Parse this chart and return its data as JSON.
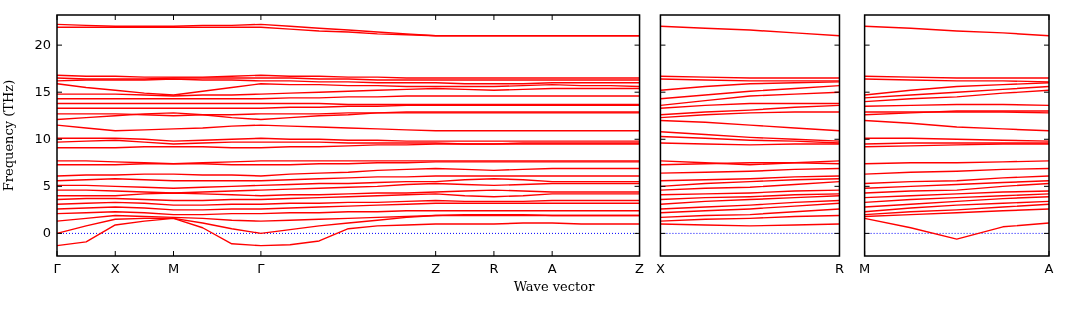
{
  "chart_data": [
    {
      "type": "line",
      "xlabel": "Wave vector",
      "ylabel": "Frequency (THz)",
      "marker": "none",
      "line_style": "solid",
      "categories": [
        "Γ",
        null,
        "X",
        null,
        "M",
        null,
        null,
        "Γ",
        null,
        null,
        null,
        null,
        null,
        "Z",
        null,
        "R",
        null,
        "A",
        null,
        null,
        "Z"
      ],
      "ylim": [
        -2.4,
        23.2
      ],
      "yticks": [
        0,
        5,
        10,
        15,
        20
      ],
      "ref_lines": [
        {
          "axis": "y",
          "value": 0,
          "color": "#0000ff",
          "line_style": "dotted"
        }
      ],
      "series": [
        {
          "color": "#ff0000",
          "values": [
            22.2,
            22.1,
            22.0,
            22.0,
            22.0,
            22.1,
            22.1,
            22.2,
            22.0,
            21.8,
            21.6,
            21.4,
            21.2,
            21.0,
            21.0,
            21.0,
            21.0,
            21.0,
            21.0,
            21.0,
            21.0
          ]
        },
        {
          "color": "#ff0000",
          "values": [
            21.9,
            21.9,
            21.9,
            21.9,
            21.9,
            21.9,
            21.9,
            21.9,
            21.7,
            21.5,
            21.4,
            21.2,
            21.1,
            21.0,
            21.0,
            21.0,
            21.0,
            21.0,
            21.0,
            21.0,
            21.0
          ]
        },
        {
          "color": "#ff0000",
          "values": [
            16.8,
            16.7,
            16.7,
            16.6,
            16.6,
            16.6,
            16.7,
            16.8,
            16.7,
            16.7,
            16.6,
            16.6,
            16.5,
            16.5,
            16.5,
            16.5,
            16.5,
            16.5,
            16.5,
            16.5,
            16.5
          ]
        },
        {
          "color": "#ff0000",
          "values": [
            16.5,
            16.4,
            16.4,
            16.4,
            16.5,
            16.5,
            16.5,
            16.5,
            16.5,
            16.4,
            16.4,
            16.3,
            16.3,
            16.3,
            16.3,
            16.3,
            16.3,
            16.3,
            16.3,
            16.3,
            16.3
          ]
        },
        {
          "color": "#ff0000",
          "values": [
            16.2,
            16.3,
            16.3,
            16.3,
            16.4,
            16.3,
            16.3,
            16.2,
            16.2,
            16.1,
            16.1,
            16.0,
            16.0,
            16.0,
            15.9,
            15.9,
            15.9,
            16.0,
            16.0,
            16.0,
            16.0
          ]
        },
        {
          "color": "#ff0000",
          "values": [
            15.9,
            15.5,
            15.2,
            14.9,
            14.7,
            15.1,
            15.5,
            15.9,
            15.8,
            15.8,
            15.7,
            15.7,
            15.6,
            15.6,
            15.6,
            15.6,
            15.7,
            15.8,
            15.7,
            15.7,
            15.6
          ]
        },
        {
          "color": "#ff0000",
          "values": [
            14.8,
            14.8,
            14.8,
            14.7,
            14.6,
            14.7,
            14.7,
            14.8,
            14.9,
            15.0,
            15.1,
            15.2,
            15.3,
            15.4,
            15.3,
            15.2,
            15.3,
            15.4,
            15.4,
            15.4,
            15.4
          ]
        },
        {
          "color": "#ff0000",
          "values": [
            14.3,
            14.3,
            14.3,
            14.3,
            14.3,
            14.3,
            14.3,
            14.3,
            14.4,
            14.4,
            14.5,
            14.5,
            14.6,
            14.6,
            14.6,
            14.6,
            14.6,
            14.6,
            14.6,
            14.6,
            14.6
          ]
        },
        {
          "color": "#ff0000",
          "values": [
            13.8,
            13.8,
            13.8,
            13.8,
            13.8,
            13.8,
            13.8,
            13.8,
            13.8,
            13.8,
            13.7,
            13.7,
            13.7,
            13.7,
            13.7,
            13.7,
            13.7,
            13.7,
            13.7,
            13.7,
            13.7
          ]
        },
        {
          "color": "#ff0000",
          "values": [
            13.3,
            13.3,
            13.3,
            13.3,
            13.3,
            13.3,
            13.3,
            13.3,
            13.4,
            13.4,
            13.5,
            13.5,
            13.6,
            13.6,
            13.6,
            13.6,
            13.6,
            13.6,
            13.6,
            13.6,
            13.6
          ]
        },
        {
          "color": "#ff0000",
          "values": [
            12.7,
            12.7,
            12.7,
            12.6,
            12.5,
            12.6,
            12.6,
            12.7,
            12.7,
            12.7,
            12.8,
            12.8,
            12.8,
            12.8,
            12.8,
            12.8,
            12.8,
            12.8,
            12.8,
            12.8,
            12.8
          ]
        },
        {
          "color": "#ff0000",
          "values": [
            12.1,
            12.3,
            12.5,
            12.7,
            12.8,
            12.6,
            12.3,
            12.1,
            12.3,
            12.5,
            12.6,
            12.8,
            12.9,
            12.9,
            12.9,
            12.9,
            12.9,
            12.9,
            12.9,
            12.9,
            12.9
          ]
        },
        {
          "color": "#ff0000",
          "values": [
            11.5,
            11.2,
            10.9,
            11.0,
            11.1,
            11.2,
            11.4,
            11.5,
            11.4,
            11.3,
            11.2,
            11.1,
            11.0,
            10.9,
            10.9,
            10.9,
            10.9,
            10.9,
            10.9,
            10.9,
            10.9
          ]
        },
        {
          "color": "#ff0000",
          "values": [
            10.1,
            10.1,
            10.1,
            10.0,
            9.8,
            9.9,
            10.0,
            10.1,
            10.0,
            10.0,
            9.9,
            9.9,
            9.8,
            9.8,
            9.8,
            9.8,
            9.8,
            9.8,
            9.8,
            9.8,
            9.8
          ]
        },
        {
          "color": "#ff0000",
          "values": [
            9.7,
            9.8,
            9.9,
            9.7,
            9.5,
            9.6,
            9.7,
            9.7,
            9.7,
            9.7,
            9.6,
            9.6,
            9.6,
            9.6,
            9.5,
            9.5,
            9.6,
            9.6,
            9.6,
            9.6,
            9.6
          ]
        },
        {
          "color": "#ff0000",
          "values": [
            9.1,
            9.1,
            9.1,
            9.2,
            9.2,
            9.2,
            9.1,
            9.1,
            9.2,
            9.2,
            9.3,
            9.4,
            9.4,
            9.5,
            9.5,
            9.5,
            9.5,
            9.5,
            9.5,
            9.5,
            9.5
          ]
        },
        {
          "color": "#ff0000",
          "values": [
            7.7,
            7.7,
            7.6,
            7.5,
            7.4,
            7.5,
            7.6,
            7.7,
            7.7,
            7.7,
            7.7,
            7.7,
            7.7,
            7.7,
            7.7,
            7.7,
            7.7,
            7.7,
            7.7,
            7.7,
            7.7
          ]
        },
        {
          "color": "#ff0000",
          "values": [
            7.3,
            7.3,
            7.3,
            7.4,
            7.4,
            7.4,
            7.3,
            7.3,
            7.3,
            7.4,
            7.4,
            7.5,
            7.5,
            7.6,
            7.6,
            7.6,
            7.6,
            7.6,
            7.6,
            7.6,
            7.6
          ]
        },
        {
          "color": "#ff0000",
          "values": [
            6.1,
            6.2,
            6.2,
            6.3,
            6.3,
            6.2,
            6.2,
            6.1,
            6.3,
            6.4,
            6.5,
            6.7,
            6.8,
            6.9,
            6.8,
            6.7,
            6.8,
            6.9,
            6.9,
            6.9,
            6.9
          ]
        },
        {
          "color": "#ff0000",
          "values": [
            5.6,
            5.7,
            5.8,
            5.7,
            5.6,
            5.6,
            5.6,
            5.6,
            5.7,
            5.8,
            5.9,
            6.0,
            6.0,
            6.1,
            6.1,
            6.1,
            6.1,
            6.1,
            6.1,
            6.1,
            6.1
          ]
        },
        {
          "color": "#ff0000",
          "values": [
            5.1,
            5.1,
            5.0,
            4.9,
            4.8,
            4.9,
            5.0,
            5.1,
            5.2,
            5.3,
            5.3,
            5.4,
            5.5,
            5.5,
            5.7,
            5.8,
            5.7,
            5.5,
            5.5,
            5.5,
            5.5
          ]
        },
        {
          "color": "#ff0000",
          "values": [
            4.6,
            4.6,
            4.5,
            4.4,
            4.3,
            4.4,
            4.5,
            4.6,
            4.7,
            4.8,
            4.9,
            5.0,
            5.2,
            5.3,
            5.2,
            5.1,
            5.2,
            5.3,
            5.3,
            5.3,
            5.3
          ]
        },
        {
          "color": "#ff0000",
          "values": [
            4.0,
            4.0,
            4.0,
            4.2,
            4.3,
            4.2,
            4.1,
            4.0,
            4.1,
            4.1,
            4.2,
            4.3,
            4.3,
            4.4,
            4.5,
            4.6,
            4.5,
            4.4,
            4.4,
            4.4,
            4.4
          ]
        },
        {
          "color": "#ff0000",
          "values": [
            3.6,
            3.7,
            3.7,
            3.6,
            3.5,
            3.5,
            3.6,
            3.6,
            3.7,
            3.8,
            3.9,
            4.0,
            4.1,
            4.2,
            4.0,
            3.9,
            4.0,
            4.2,
            4.2,
            4.2,
            4.2
          ]
        },
        {
          "color": "#ff0000",
          "values": [
            3.1,
            3.2,
            3.3,
            3.2,
            3.0,
            3.0,
            3.1,
            3.1,
            3.2,
            3.2,
            3.3,
            3.3,
            3.4,
            3.5,
            3.4,
            3.4,
            3.4,
            3.5,
            3.5,
            3.5,
            3.5
          ]
        },
        {
          "color": "#ff0000",
          "values": [
            2.6,
            2.7,
            2.8,
            2.7,
            2.5,
            2.5,
            2.6,
            2.6,
            2.7,
            2.8,
            2.9,
            3.0,
            3.1,
            3.2,
            3.2,
            3.2,
            3.2,
            3.2,
            3.2,
            3.2,
            3.2
          ]
        },
        {
          "color": "#ff0000",
          "values": [
            2.1,
            2.2,
            2.3,
            2.2,
            2.0,
            2.0,
            2.1,
            2.1,
            2.2,
            2.2,
            2.3,
            2.3,
            2.4,
            2.4,
            2.4,
            2.4,
            2.4,
            2.4,
            2.4,
            2.4,
            2.4
          ]
        },
        {
          "color": "#ff0000",
          "values": [
            1.3,
            1.6,
            1.9,
            1.8,
            1.7,
            1.6,
            1.4,
            1.3,
            1.4,
            1.5,
            1.6,
            1.7,
            1.8,
            1.9,
            1.9,
            1.9,
            1.9,
            1.9,
            1.9,
            1.9,
            1.9
          ]
        },
        {
          "color": "#ff0000",
          "values": [
            0,
            0.8,
            1.5,
            1.6,
            1.6,
            1.1,
            0.5,
            0,
            0.4,
            0.8,
            1.1,
            1.4,
            1.7,
            1.9,
            2.0,
            2.0,
            2.0,
            1.9,
            1.9,
            1.9,
            1.9
          ]
        },
        {
          "color": "#ff0000",
          "values": [
            -1.3,
            -0.9,
            0.9,
            1.3,
            1.6,
            0.6,
            -1.1,
            -1.3,
            -1.2,
            -0.8,
            0.5,
            0.8,
            0.9,
            1.0,
            1.0,
            1.0,
            1.1,
            1.1,
            1.0,
            1.0,
            1.0
          ]
        }
      ]
    },
    {
      "type": "line",
      "marker": "none",
      "line_style": "solid",
      "tick_labels": "x",
      "categories": [
        "X",
        null,
        null,
        null,
        "R"
      ],
      "ylim": [
        -2.4,
        23.2
      ],
      "yticks": [
        0,
        5,
        10,
        15,
        20
      ],
      "ref_lines": [
        {
          "axis": "y",
          "value": 0,
          "color": "#0000ff",
          "line_style": "dotted"
        }
      ],
      "series": [
        {
          "color": "#ff0000",
          "values": [
            22.0,
            21.8,
            21.6,
            21.3,
            21.0
          ]
        },
        {
          "color": "#ff0000",
          "values": [
            16.7,
            16.6,
            16.5,
            16.5,
            16.5
          ]
        },
        {
          "color": "#ff0000",
          "values": [
            16.4,
            16.3,
            16.2,
            16.2,
            16.2
          ]
        },
        {
          "color": "#ff0000",
          "values": [
            15.2,
            15.6,
            15.9,
            16.0,
            16.1
          ]
        },
        {
          "color": "#ff0000",
          "values": [
            14.3,
            14.7,
            15.1,
            15.4,
            15.7
          ]
        },
        {
          "color": "#ff0000",
          "values": [
            13.6,
            14.1,
            14.6,
            14.8,
            15.0
          ]
        },
        {
          "color": "#ff0000",
          "values": [
            13.3,
            13.6,
            13.8,
            13.8,
            13.8
          ]
        },
        {
          "color": "#ff0000",
          "values": [
            12.6,
            12.9,
            13.1,
            13.4,
            13.6
          ]
        },
        {
          "color": "#ff0000",
          "values": [
            12.3,
            12.6,
            12.8,
            12.9,
            12.9
          ]
        },
        {
          "color": "#ff0000",
          "values": [
            12.0,
            11.8,
            11.5,
            11.2,
            10.9
          ]
        },
        {
          "color": "#ff0000",
          "values": [
            10.8,
            10.5,
            10.2,
            10.0,
            9.8
          ]
        },
        {
          "color": "#ff0000",
          "values": [
            10.3,
            10.1,
            9.9,
            9.8,
            9.6
          ]
        },
        {
          "color": "#ff0000",
          "values": [
            9.6,
            9.5,
            9.4,
            9.5,
            9.5
          ]
        },
        {
          "color": "#ff0000",
          "values": [
            7.7,
            7.5,
            7.3,
            7.5,
            7.7
          ]
        },
        {
          "color": "#ff0000",
          "values": [
            7.3,
            7.4,
            7.5,
            7.5,
            7.4
          ]
        },
        {
          "color": "#ff0000",
          "values": [
            6.4,
            6.5,
            6.6,
            6.8,
            6.9
          ]
        },
        {
          "color": "#ff0000",
          "values": [
            5.6,
            5.7,
            5.8,
            6.0,
            6.1
          ]
        },
        {
          "color": "#ff0000",
          "values": [
            5.0,
            5.3,
            5.5,
            5.7,
            5.8
          ]
        },
        {
          "color": "#ff0000",
          "values": [
            4.6,
            4.8,
            4.9,
            5.2,
            5.5
          ]
        },
        {
          "color": "#ff0000",
          "values": [
            4.1,
            4.2,
            4.3,
            4.5,
            4.6
          ]
        },
        {
          "color": "#ff0000",
          "values": [
            3.6,
            3.8,
            3.9,
            4.1,
            4.2
          ]
        },
        {
          "color": "#ff0000",
          "values": [
            3.1,
            3.4,
            3.6,
            3.8,
            4.0
          ]
        },
        {
          "color": "#ff0000",
          "values": [
            2.6,
            2.8,
            3.0,
            3.3,
            3.5
          ]
        },
        {
          "color": "#ff0000",
          "values": [
            2.2,
            2.4,
            2.6,
            2.9,
            3.2
          ]
        },
        {
          "color": "#ff0000",
          "values": [
            1.7,
            1.9,
            2.0,
            2.3,
            2.6
          ]
        },
        {
          "color": "#ff0000",
          "values": [
            1.3,
            1.5,
            1.6,
            1.8,
            1.9
          ]
        },
        {
          "color": "#ff0000",
          "values": [
            1.0,
            0.9,
            0.8,
            0.9,
            1.0
          ]
        }
      ]
    },
    {
      "type": "line",
      "marker": "none",
      "line_style": "solid",
      "tick_labels": "x",
      "categories": [
        "M",
        null,
        null,
        null,
        "A"
      ],
      "ylim": [
        -2.4,
        23.2
      ],
      "yticks": [
        0,
        5,
        10,
        15,
        20
      ],
      "ref_lines": [
        {
          "axis": "y",
          "value": 0,
          "color": "#0000ff",
          "line_style": "dotted"
        }
      ],
      "series": [
        {
          "color": "#ff0000",
          "values": [
            22.0,
            21.8,
            21.5,
            21.3,
            21.0
          ]
        },
        {
          "color": "#ff0000",
          "values": [
            16.7,
            16.6,
            16.5,
            16.5,
            16.5
          ]
        },
        {
          "color": "#ff0000",
          "values": [
            16.4,
            16.3,
            16.2,
            16.2,
            16.1
          ]
        },
        {
          "color": "#ff0000",
          "values": [
            14.7,
            15.2,
            15.6,
            15.8,
            16.0
          ]
        },
        {
          "color": "#ff0000",
          "values": [
            14.4,
            14.7,
            15.0,
            15.3,
            15.6
          ]
        },
        {
          "color": "#ff0000",
          "values": [
            14.0,
            14.3,
            14.5,
            14.9,
            15.2
          ]
        },
        {
          "color": "#ff0000",
          "values": [
            13.5,
            13.6,
            13.7,
            13.7,
            13.6
          ]
        },
        {
          "color": "#ff0000",
          "values": [
            12.9,
            12.9,
            12.9,
            12.9,
            12.8
          ]
        },
        {
          "color": "#ff0000",
          "values": [
            12.6,
            12.8,
            13.0,
            13.0,
            13.0
          ]
        },
        {
          "color": "#ff0000",
          "values": [
            12.0,
            11.7,
            11.3,
            11.1,
            10.9
          ]
        },
        {
          "color": "#ff0000",
          "values": [
            10.1,
            10.1,
            10.0,
            9.9,
            9.8
          ]
        },
        {
          "color": "#ff0000",
          "values": [
            9.5,
            9.6,
            9.6,
            9.6,
            9.6
          ]
        },
        {
          "color": "#ff0000",
          "values": [
            9.2,
            9.3,
            9.4,
            9.5,
            9.5
          ]
        },
        {
          "color": "#ff0000",
          "values": [
            7.4,
            7.5,
            7.5,
            7.6,
            7.7
          ]
        },
        {
          "color": "#ff0000",
          "values": [
            6.3,
            6.5,
            6.6,
            6.8,
            6.9
          ]
        },
        {
          "color": "#ff0000",
          "values": [
            5.3,
            5.5,
            5.6,
            5.9,
            6.1
          ]
        },
        {
          "color": "#ff0000",
          "values": [
            4.8,
            5.0,
            5.2,
            5.4,
            5.6
          ]
        },
        {
          "color": "#ff0000",
          "values": [
            4.3,
            4.5,
            4.6,
            5.0,
            5.3
          ]
        },
        {
          "color": "#ff0000",
          "values": [
            3.8,
            4.0,
            4.2,
            4.4,
            4.5
          ]
        },
        {
          "color": "#ff0000",
          "values": [
            3.3,
            3.6,
            3.8,
            4.0,
            4.2
          ]
        },
        {
          "color": "#ff0000",
          "values": [
            2.8,
            3.1,
            3.4,
            3.7,
            3.9
          ]
        },
        {
          "color": "#ff0000",
          "values": [
            2.3,
            2.7,
            3.0,
            3.2,
            3.4
          ]
        },
        {
          "color": "#ff0000",
          "values": [
            2.0,
            2.3,
            2.5,
            2.8,
            3.1
          ]
        },
        {
          "color": "#ff0000",
          "values": [
            1.8,
            2.0,
            2.2,
            2.4,
            2.6
          ]
        },
        {
          "color": "#ff0000",
          "values": [
            1.6,
            0.6,
            -0.6,
            0.7,
            1.1
          ]
        }
      ]
    }
  ]
}
